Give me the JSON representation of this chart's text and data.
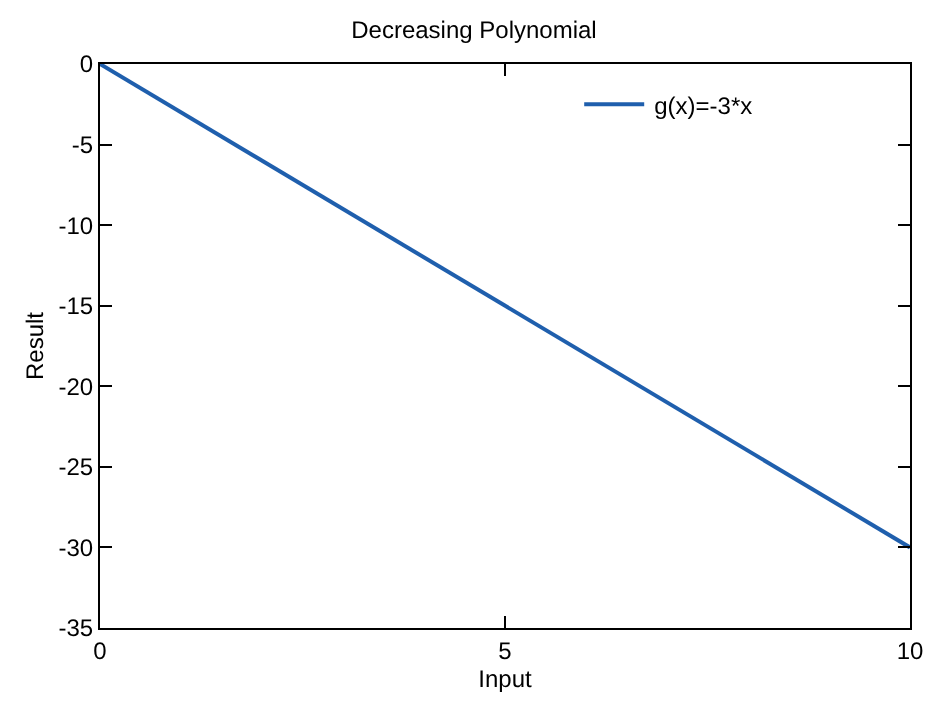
{
  "chart_data": {
    "type": "line",
    "title": "Decreasing Polynomial",
    "xlabel": "Input",
    "ylabel": "Result",
    "x": [
      0,
      10
    ],
    "series": [
      {
        "name": "g(x)=-3*x",
        "color": "#1f5fad",
        "values": [
          0,
          -30
        ]
      }
    ],
    "xlim": [
      0,
      10
    ],
    "xticks": [
      0,
      5,
      10
    ],
    "ylim": [
      -35,
      0
    ],
    "yticks": [
      -35,
      -30,
      -25,
      -20,
      -15,
      -10,
      -5,
      0
    ],
    "legend": "top right",
    "marker": "none",
    "line_style": "solid"
  }
}
